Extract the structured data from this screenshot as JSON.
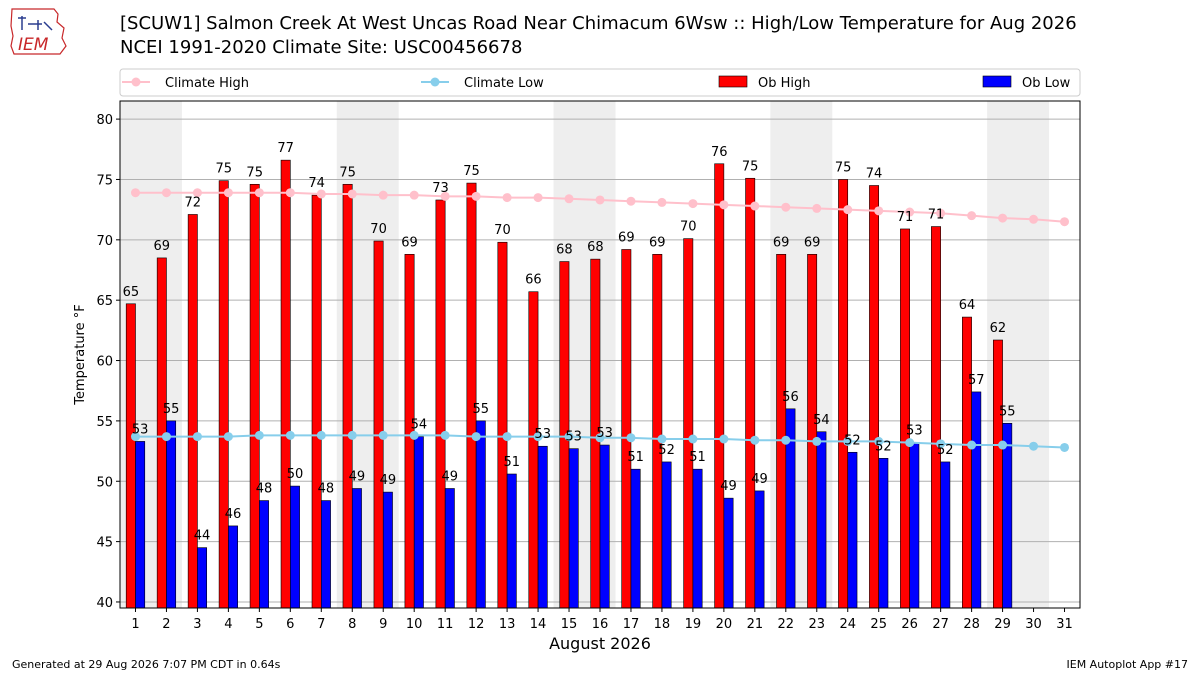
{
  "header": {
    "logo_text": "IEM",
    "title_line1": "[SCUW1] Salmon Creek At West Uncas Road Near Chimacum 6Wsw :: High/Low Temperature for Aug 2026",
    "title_line2": "NCEI 1991-2020 Climate Site: USC00456678"
  },
  "footer": {
    "generated": "Generated at 29 Aug 2026 7:07 PM CDT in 0.64s",
    "app": "IEM Autoplot App #17"
  },
  "chart_data": {
    "type": "bar",
    "xlabel": "August 2026",
    "ylabel": "Temperature °F",
    "ylim": [
      39.5,
      81.5
    ],
    "yticks": [
      40,
      45,
      50,
      55,
      60,
      65,
      70,
      75,
      80
    ],
    "grid": true,
    "legend_position": "top",
    "colors": {
      "ob_high": "#ff0000",
      "ob_low": "#0000ff",
      "climate_high": "#ffc0cb",
      "climate_low": "#87ceeb",
      "weekend_band": "#eeeeee"
    },
    "categories": [
      1,
      2,
      3,
      4,
      5,
      6,
      7,
      8,
      9,
      10,
      11,
      12,
      13,
      14,
      15,
      16,
      17,
      18,
      19,
      20,
      21,
      22,
      23,
      24,
      25,
      26,
      27,
      28,
      29,
      30,
      31
    ],
    "weekend_bands": [
      [
        1,
        2
      ],
      [
        8,
        9
      ],
      [
        15,
        16
      ],
      [
        22,
        23
      ],
      [
        29,
        30
      ]
    ],
    "series": [
      {
        "name": "Climate High",
        "kind": "line",
        "values": [
          73.9,
          73.9,
          73.9,
          73.9,
          73.9,
          73.9,
          73.8,
          73.8,
          73.7,
          73.7,
          73.6,
          73.6,
          73.5,
          73.5,
          73.4,
          73.3,
          73.2,
          73.1,
          73.0,
          72.9,
          72.8,
          72.7,
          72.6,
          72.5,
          72.4,
          72.3,
          72.2,
          72.0,
          71.8,
          71.7,
          71.5
        ]
      },
      {
        "name": "Climate Low",
        "kind": "line",
        "values": [
          53.7,
          53.7,
          53.7,
          53.7,
          53.8,
          53.8,
          53.8,
          53.8,
          53.8,
          53.8,
          53.8,
          53.7,
          53.7,
          53.7,
          53.7,
          53.6,
          53.6,
          53.5,
          53.5,
          53.5,
          53.4,
          53.4,
          53.3,
          53.3,
          53.3,
          53.2,
          53.1,
          53.0,
          53.0,
          52.9,
          52.8
        ]
      },
      {
        "name": "Ob High",
        "kind": "bar",
        "values": [
          64.7,
          68.5,
          72.1,
          74.9,
          74.6,
          76.6,
          73.7,
          74.6,
          69.9,
          68.8,
          73.3,
          74.7,
          69.8,
          65.7,
          68.2,
          68.4,
          69.2,
          68.8,
          70.1,
          76.3,
          75.1,
          68.8,
          68.8,
          75.0,
          74.5,
          70.9,
          71.1,
          63.6,
          61.7,
          null,
          null
        ]
      },
      {
        "name": "Ob Low",
        "kind": "bar",
        "values": [
          53.3,
          55.0,
          44.5,
          46.3,
          48.4,
          49.6,
          48.4,
          49.4,
          49.1,
          53.7,
          49.4,
          55.0,
          50.6,
          52.9,
          52.7,
          53.0,
          51.0,
          51.6,
          51.0,
          48.6,
          49.2,
          56.0,
          54.1,
          52.4,
          51.9,
          53.2,
          51.6,
          57.4,
          54.8,
          null,
          null
        ]
      }
    ],
    "high_labels": [
      "65",
      "69",
      "72",
      "75",
      "75",
      "77",
      "74",
      "75",
      "70",
      "69",
      "73",
      "75",
      "70",
      "66",
      "68",
      "68",
      "69",
      "69",
      "70",
      "76",
      "75",
      "69",
      "69",
      "75",
      "74",
      "71",
      "71",
      "64",
      "62",
      "",
      ""
    ],
    "low_labels": [
      "53",
      "55",
      "44",
      "46",
      "48",
      "50",
      "48",
      "49",
      "49",
      "54",
      "49",
      "55",
      "51",
      "53",
      "53",
      "53",
      "51",
      "52",
      "51",
      "49",
      "49",
      "56",
      "54",
      "52",
      "52",
      "53",
      "52",
      "57",
      "55",
      "",
      ""
    ]
  }
}
